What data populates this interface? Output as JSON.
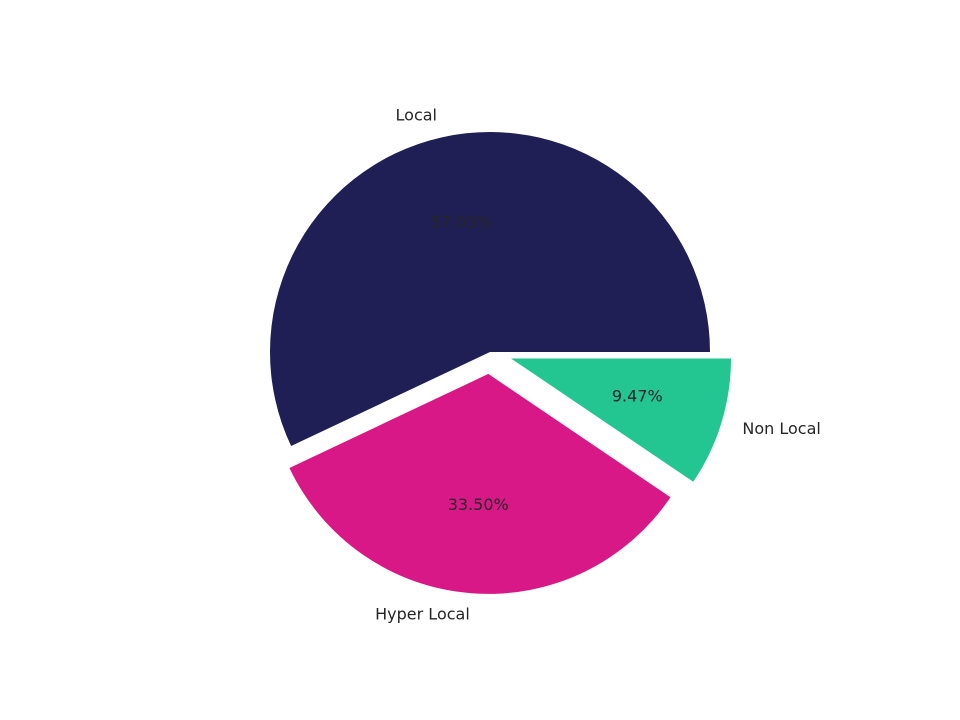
{
  "chart_data": {
    "type": "pie",
    "categories": [
      "Local",
      "Hyper Local",
      "Non Local"
    ],
    "values": [
      57.03,
      33.5,
      9.47
    ],
    "value_labels": [
      "57.03%",
      "33.50%",
      "9.47%"
    ],
    "colors": [
      "#1f1f55",
      "#d81886",
      "#23c590"
    ],
    "explode": [
      0,
      0.1,
      0.1
    ]
  }
}
